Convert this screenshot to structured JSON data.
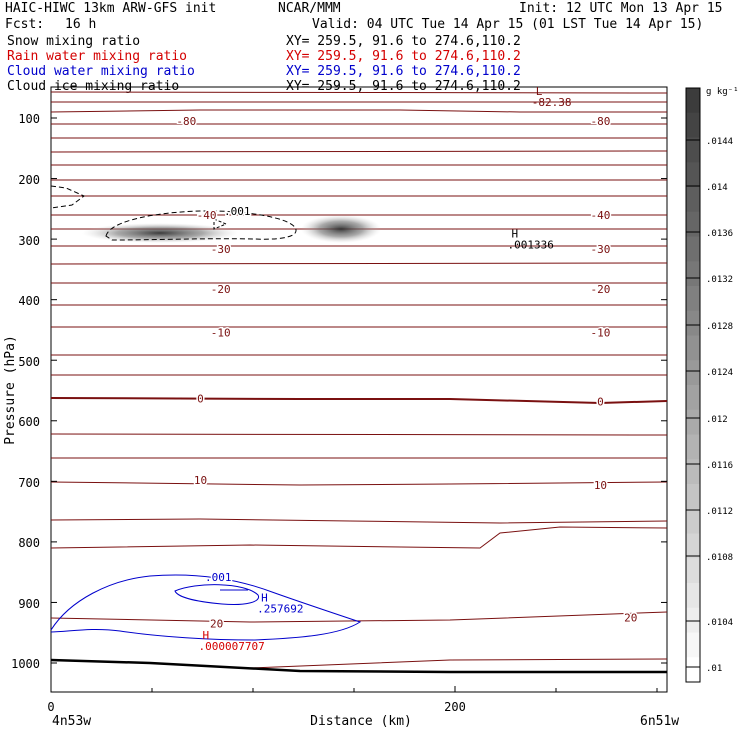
{
  "header": {
    "model": "HAIC-HIWC 13km ARW-GFS init",
    "org": "NCAR/MMM",
    "init": "Init: 12 UTC Mon 13 Apr 15",
    "fcst_label": "Fcst:",
    "fcst_value": "16 h",
    "valid": "Valid: 04 UTC Tue 14 Apr 15 (01 LST Tue 14 Apr 15)",
    "fields": [
      {
        "name": "Snow mixing ratio",
        "xy": "XY= 259.5, 91.6 to 274.6,110.2",
        "color": "#000000"
      },
      {
        "name": "Rain water mixing ratio",
        "xy": "XY= 259.5, 91.6 to 274.6,110.2",
        "color": "#d40000"
      },
      {
        "name": "Cloud water mixing ratio",
        "xy": "XY= 259.5, 91.6 to 274.6,110.2",
        "color": "#0000cc"
      },
      {
        "name": "Cloud ice mixing ratio",
        "xy": "XY= 259.5, 91.6 to 274.6,110.2",
        "color": "#000000"
      }
    ]
  },
  "chart_data": {
    "type": "contour cross-section",
    "xlabel": "Distance (km)",
    "ylabel": "Pressure (hPa)",
    "x_ticks": [
      "0",
      "200"
    ],
    "x_range_km": [
      0,
      300
    ],
    "y_ticks": [
      "100",
      "200",
      "300",
      "400",
      "500",
      "600",
      "700",
      "800",
      "900",
      "1000"
    ],
    "y_range_hpa": [
      50,
      1050
    ],
    "endpoints": {
      "left": "4n53w",
      "right": "6n51w"
    },
    "colorbar": {
      "unit": "g kg⁻¹",
      "ticks": [
        ".0144",
        ".014",
        ".0136",
        ".0132",
        ".0128",
        ".0124",
        ".012",
        ".0116",
        ".0112",
        ".0108",
        ".0104",
        ".01"
      ]
    },
    "temperature_isotherms": {
      "color": "#7a1010",
      "labels": [
        {
          "text": "-80",
          "x_km": 67,
          "p": 105
        },
        {
          "text": "-80",
          "x_km": 272,
          "p": 105
        },
        {
          "text": "-40",
          "x_km": 77,
          "p": 260
        },
        {
          "text": "-40",
          "x_km": 272,
          "p": 260
        },
        {
          "text": "-30",
          "x_km": 84,
          "p": 316
        },
        {
          "text": "-30",
          "x_km": 272,
          "p": 316
        },
        {
          "text": "-20",
          "x_km": 84,
          "p": 382
        },
        {
          "text": "-20",
          "x_km": 272,
          "p": 382
        },
        {
          "text": "-10",
          "x_km": 84,
          "p": 454
        },
        {
          "text": "-10",
          "x_km": 272,
          "p": 454
        },
        {
          "text": "0",
          "x_km": 74,
          "p": 563
        },
        {
          "text": "0",
          "x_km": 272,
          "p": 568
        },
        {
          "text": "10",
          "x_km": 74,
          "p": 698
        },
        {
          "text": "10",
          "x_km": 272,
          "p": 706
        },
        {
          "text": "20",
          "x_km": 82,
          "p": 935
        },
        {
          "text": "20",
          "x_km": 287,
          "p": 925
        }
      ],
      "minimum": {
        "symbol": "L",
        "value": "-82.38",
        "x_km": 240,
        "p": 72
      }
    },
    "cloud_water": {
      "color": "#0000cc",
      "contour_label": ".001",
      "maximum": {
        "symbol": "H",
        "value": ".257692",
        "x_km": 104,
        "p": 908
      }
    },
    "rain_water": {
      "color": "#d40000",
      "maximum": {
        "symbol": "H",
        "value": ".000007707",
        "x_km": 75,
        "p": 970
      }
    },
    "snow": {
      "contour_label": ".001",
      "maximum": {
        "symbol": "H",
        "value": ".001336",
        "x_km": 228,
        "p": 307
      }
    }
  }
}
